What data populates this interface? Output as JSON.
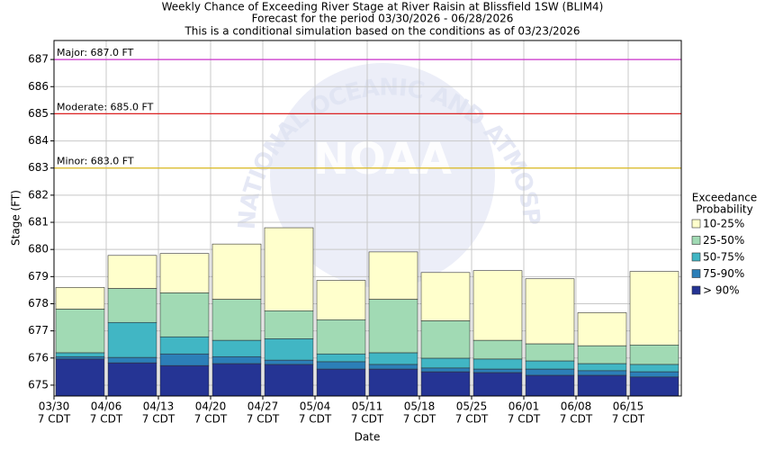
{
  "chart_data": {
    "type": "bar",
    "title": [
      "Weekly Chance of Exceeding River Stage at River Raisin at Blissfield 1SW (BLIM4)",
      "Forecast for the period 03/30/2026 - 06/28/2026",
      "This is a conditional simulation based on the conditions as of 03/23/2026"
    ],
    "watermark": [
      "NOAA",
      "NATIONAL OCEANIC AND ATMOSPHERIC ADMINISTRATION"
    ],
    "x_label": "Date",
    "y_label": "Stage (FT)",
    "categories": [
      [
        "03/30",
        "7 CDT"
      ],
      [
        "04/06",
        "7 CDT"
      ],
      [
        "04/13",
        "7 CDT"
      ],
      [
        "04/20",
        "7 CDT"
      ],
      [
        "04/27",
        "7 CDT"
      ],
      [
        "05/04",
        "7 CDT"
      ],
      [
        "05/11",
        "7 CDT"
      ],
      [
        "05/18",
        "7 CDT"
      ],
      [
        "05/25",
        "7 CDT"
      ],
      [
        "06/01",
        "7 CDT"
      ],
      [
        "06/08",
        "7 CDT"
      ],
      [
        "06/15",
        "7 CDT"
      ]
    ],
    "legend_title": [
      "Exceedance",
      "Probability"
    ],
    "series": [
      {
        "name": "10-25%",
        "color": "#ffffcc",
        "values": [
          678.6,
          679.78,
          679.85,
          680.2,
          680.8,
          678.86,
          679.91,
          679.15,
          679.22,
          678.92,
          677.67,
          679.19
        ]
      },
      {
        "name": "25-50%",
        "color": "#a1dab4",
        "values": [
          677.8,
          678.56,
          678.4,
          678.16,
          677.74,
          677.41,
          678.16,
          677.37,
          676.65,
          676.52,
          676.45,
          676.48
        ]
      },
      {
        "name": "50-75%",
        "color": "#41b6c4",
        "values": [
          676.19,
          677.31,
          676.78,
          676.65,
          676.71,
          676.15,
          676.19,
          675.99,
          675.96,
          675.89,
          675.79,
          675.76
        ]
      },
      {
        "name": "75-90%",
        "color": "#2c7fb8",
        "values": [
          676.05,
          676.02,
          676.15,
          676.05,
          675.92,
          675.86,
          675.76,
          675.63,
          675.59,
          675.59,
          675.53,
          675.49
        ]
      },
      {
        "name": "> 90%",
        "color": "#253494",
        "values": [
          675.96,
          675.82,
          675.72,
          675.79,
          675.76,
          675.59,
          675.59,
          675.49,
          675.46,
          675.36,
          675.36,
          675.3
        ]
      }
    ],
    "thresholds": [
      {
        "label": "Major: 687.0 FT",
        "value": 687,
        "color": "#cc33cc"
      },
      {
        "label": "Moderate: 685.0 FT",
        "value": 685,
        "color": "#dd2222"
      },
      {
        "label": "Minor: 683.0 FT",
        "value": 683,
        "color": "#ddbb22"
      }
    ],
    "ylim": [
      674.6,
      687.7
    ],
    "yticks": [
      675,
      676,
      677,
      678,
      679,
      680,
      681,
      682,
      683,
      684,
      685,
      686,
      687
    ],
    "grid": true
  }
}
